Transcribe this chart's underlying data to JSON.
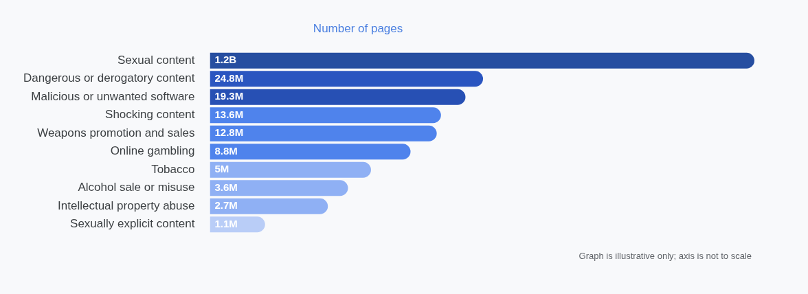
{
  "chart_data": {
    "type": "bar",
    "orientation": "horizontal",
    "title": "Number of pages",
    "categories": [
      "Sexual content",
      "Dangerous or derogatory content",
      "Malicious or unwanted software",
      "Shocking content",
      "Weapons promotion and sales",
      "Online gambling",
      "Tobacco",
      "Alcohol sale or misuse",
      "Intellectual property abuse",
      "Sexually explicit content"
    ],
    "values": [
      1200000000,
      24800000,
      19300000,
      13600000,
      12800000,
      8800000,
      5000000,
      3600000,
      2700000,
      1100000
    ],
    "value_labels": [
      "1.2B",
      "24.8M",
      "19.3M",
      "13.6M",
      "12.8M",
      "8.8M",
      "5M",
      "3.6M",
      "2.7M",
      "1.1M"
    ],
    "colors": [
      "#264ea0",
      "#2a55c0",
      "#2750b4",
      "#4f83ec",
      "#4f83ec",
      "#4f83ec",
      "#8fb0f4",
      "#8fb0f4",
      "#8fb0f4",
      "#b9cdf7"
    ],
    "log": "x",
    "xlim": [
      500000,
      1200000000
    ],
    "tick_labels": "y",
    "grid": false,
    "legend": false,
    "annotations": [
      "Graph is illustrative only; axis is not to scale"
    ]
  }
}
